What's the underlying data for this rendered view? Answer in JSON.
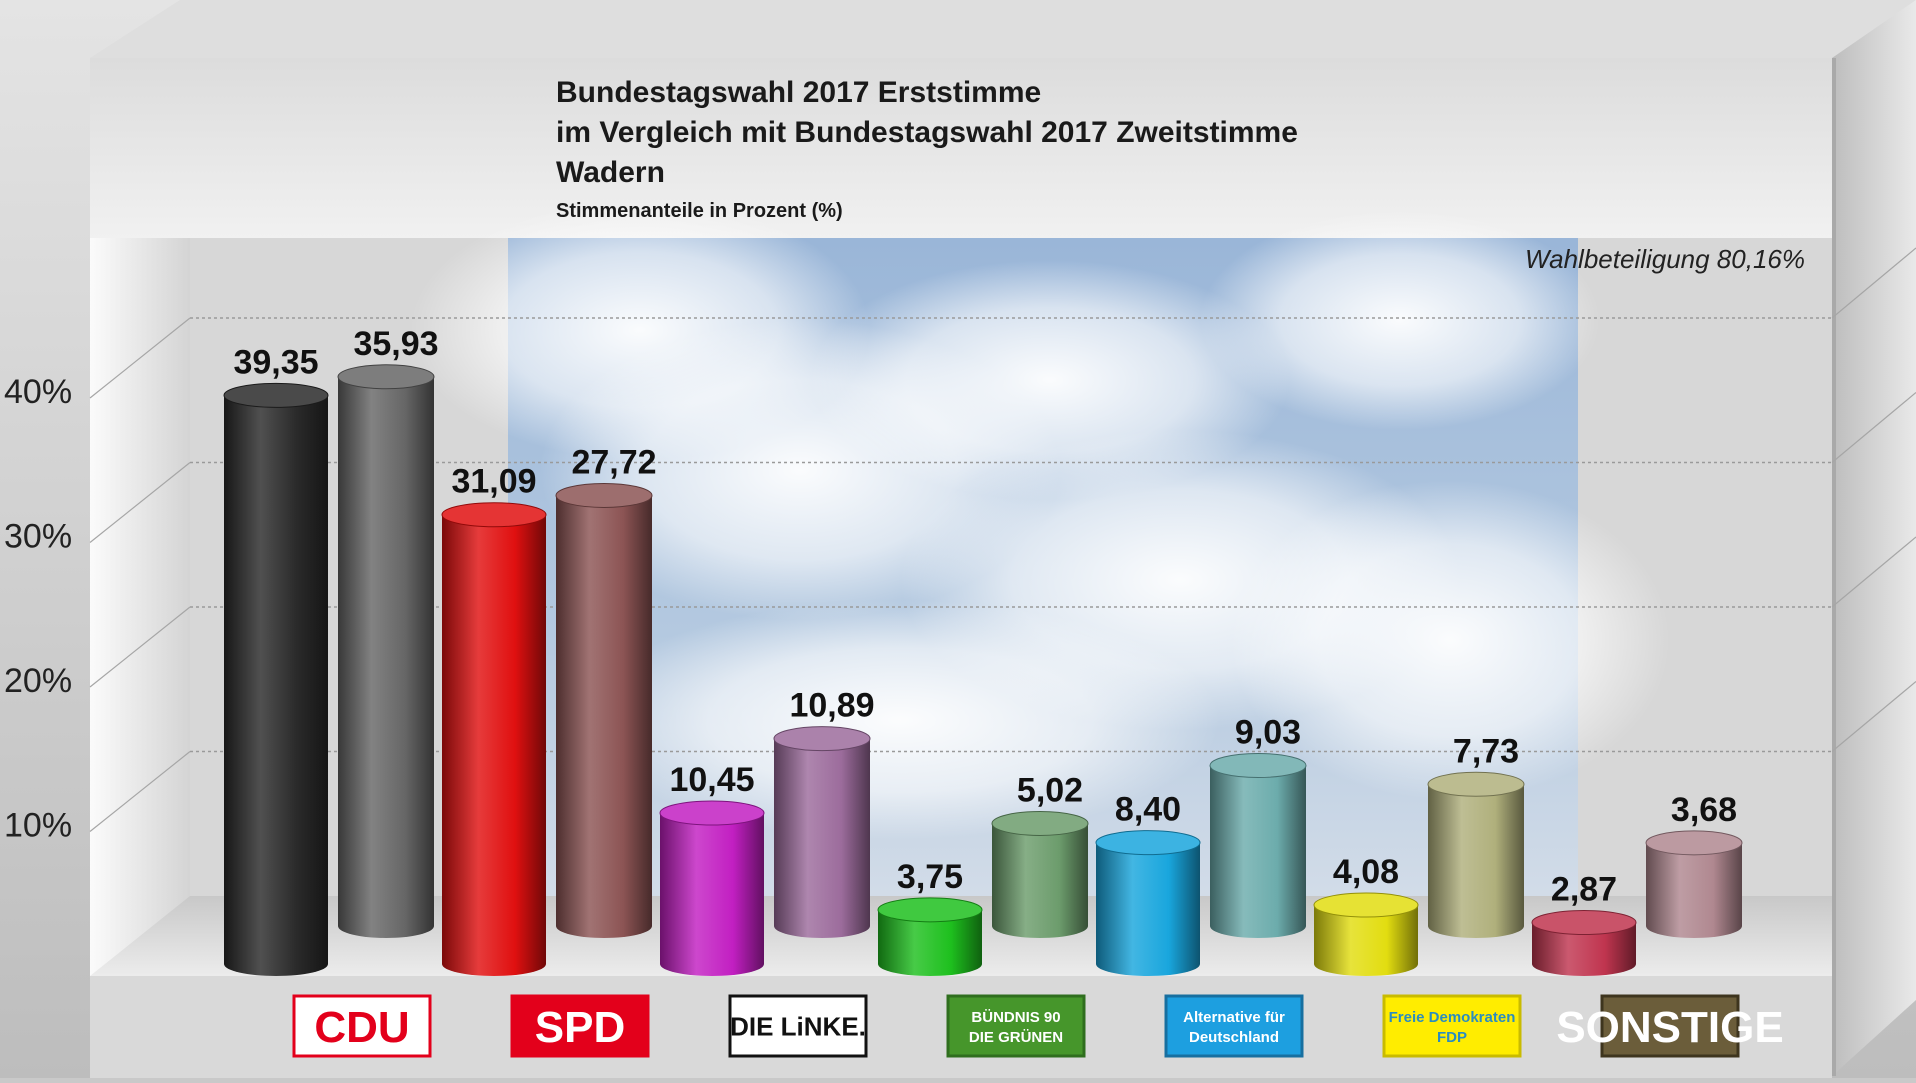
{
  "chart_data": {
    "type": "bar",
    "title_lines": [
      "Bundestagswahl 2017 Erststimme",
      "im Vergleich mit Bundestagswahl 2017 Zweitstimme",
      "Wadern"
    ],
    "subtitle": "Stimmenanteile in Prozent (%)",
    "annotation": "Wahlbeteiligung 80,16%",
    "ylim": [
      0,
      50
    ],
    "yticks": [
      10,
      20,
      30,
      40
    ],
    "ytick_labels": [
      "10%",
      "20%",
      "30%",
      "40%"
    ],
    "grid": true,
    "categories": [
      "CDU",
      "SPD",
      "DIE LINKE.",
      "BÜNDNIS 90 DIE GRÜNEN",
      "Alternative für Deutschland",
      "Freie Demokraten FDP",
      "SONSTIGE"
    ],
    "series": [
      {
        "values": [
          39.35,
          31.09,
          10.45,
          3.75,
          8.4,
          4.08,
          2.87
        ],
        "labels": [
          "39,35",
          "31,09",
          "10,45",
          "3,75",
          "8,40",
          "4,08",
          "2,87"
        ],
        "colors": [
          "#2a2a2a",
          "#e01010",
          "#c21fc2",
          "#1ec01e",
          "#19a6dd",
          "#e2dd10",
          "#c0354f"
        ]
      },
      {
        "values": [
          35.93,
          27.72,
          10.89,
          5.02,
          9.03,
          7.73,
          3.68
        ],
        "labels": [
          "35,93",
          "27,72",
          "10,89",
          "5,02",
          "9,03",
          "7,73",
          "3,68"
        ],
        "colors": [
          "#666666",
          "#8c5454",
          "#9c6c9c",
          "#6c9c6c",
          "#6cacac",
          "#b0b07c",
          "#b08890"
        ]
      }
    ]
  },
  "logos": [
    {
      "text": "CDU",
      "icon": "cdu-logo",
      "bg": "#ffffff",
      "fg": "#e3001b",
      "border": "#e3001b"
    },
    {
      "text": "SPD",
      "icon": "spd-logo",
      "bg": "#e3001b",
      "fg": "#ffffff",
      "border": "#e3001b"
    },
    {
      "text": "DIE LiNKE.",
      "icon": "linke-logo",
      "bg": "#ffffff",
      "fg": "#111111",
      "border": "#111111"
    },
    {
      "text": "BÜNDNIS 90 DIE GRÜNEN",
      "icon": "gruene-logo",
      "bg": "#46962b",
      "fg": "#ffffff",
      "border": "#2f6e1e"
    },
    {
      "text": "Alternative für Deutschland",
      "icon": "afd-logo",
      "bg": "#1d9fe0",
      "fg": "#ffffff",
      "border": "#176fa0"
    },
    {
      "text": "Freie Demokraten FDP",
      "icon": "fdp-logo",
      "bg": "#ffed00",
      "fg": "#2b8dbf",
      "border": "#c9bb00"
    },
    {
      "text": "SONSTIGE",
      "icon": "sonstige-logo",
      "bg": "#6b5d3a",
      "fg": "#ffffff",
      "border": "#3e351e"
    }
  ]
}
